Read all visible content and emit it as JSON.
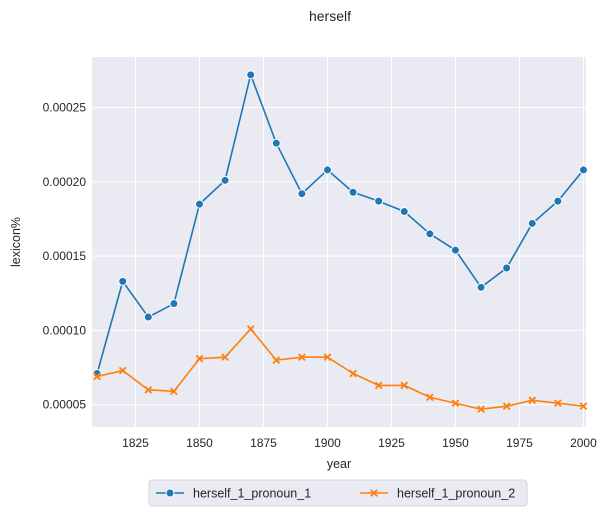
{
  "chart_data": {
    "type": "line",
    "title": "herself",
    "xlabel": "year",
    "ylabel": "lexicon%",
    "xlim": [
      1808,
      2001
    ],
    "ylim": [
      3.5e-05,
      0.000284
    ],
    "x": [
      1810,
      1820,
      1830,
      1840,
      1850,
      1860,
      1870,
      1880,
      1890,
      1900,
      1910,
      1920,
      1930,
      1940,
      1950,
      1960,
      1970,
      1980,
      1990,
      2000
    ],
    "x_ticks": [
      1825,
      1850,
      1875,
      1900,
      1925,
      1950,
      1975,
      2000
    ],
    "x_tick_labels": [
      "1825",
      "1850",
      "1875",
      "1900",
      "1925",
      "1950",
      "1975",
      "2000"
    ],
    "y_ticks": [
      5e-05,
      0.0001,
      0.00015,
      0.0002,
      0.00025
    ],
    "y_tick_labels": [
      "0.00005",
      "0.00010",
      "0.00015",
      "0.00020",
      "0.00025"
    ],
    "grid": true,
    "legend_position": "bottom-center",
    "series": [
      {
        "name": "herself_1_pronoun_1",
        "color": "#1f77b4",
        "marker": "circle",
        "values": [
          7.1e-05,
          0.000133,
          0.000109,
          0.000118,
          0.000185,
          0.000201,
          0.000272,
          0.000226,
          0.000192,
          0.000208,
          0.000193,
          0.000187,
          0.00018,
          0.000165,
          0.000154,
          0.000129,
          0.000142,
          0.000172,
          0.000187,
          0.000208
        ]
      },
      {
        "name": "herself_1_pronoun_2",
        "color": "#ff7f0e",
        "marker": "x",
        "values": [
          6.9e-05,
          7.3e-05,
          6e-05,
          5.9e-05,
          8.1e-05,
          8.2e-05,
          0.000101,
          8e-05,
          8.2e-05,
          8.2e-05,
          7.1e-05,
          6.3e-05,
          6.3e-05,
          5.5e-05,
          5.1e-05,
          4.7e-05,
          4.9e-05,
          5.3e-05,
          5.1e-05,
          4.9e-05
        ]
      }
    ]
  }
}
